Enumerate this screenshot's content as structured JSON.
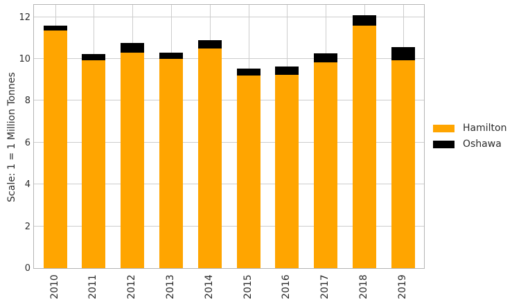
{
  "chart_data": {
    "type": "bar",
    "stacked": true,
    "title": "",
    "xlabel": "",
    "ylabel": "Scale: 1 = 1 Million Tonnes",
    "categories": [
      "2010",
      "2011",
      "2012",
      "2013",
      "2014",
      "2015",
      "2016",
      "2017",
      "2018",
      "2019"
    ],
    "series": [
      {
        "name": "Hamilton",
        "color": "#FFA500",
        "values": [
          11.35,
          9.95,
          10.3,
          10.0,
          10.5,
          9.2,
          9.25,
          9.85,
          11.6,
          9.95
        ]
      },
      {
        "name": "Oshawa",
        "color": "#000000",
        "values": [
          0.25,
          0.3,
          0.45,
          0.3,
          0.4,
          0.35,
          0.4,
          0.4,
          0.5,
          0.6
        ]
      }
    ],
    "yticks": [
      0,
      2,
      4,
      6,
      8,
      10,
      12
    ],
    "ylim": [
      0,
      12.65
    ],
    "grid": true,
    "legend_position": "right"
  },
  "colors": {
    "background": "#ffffff",
    "gridline": "#cccccc",
    "plot_border": "#b4b4b4",
    "text": "#2b2b2b"
  }
}
